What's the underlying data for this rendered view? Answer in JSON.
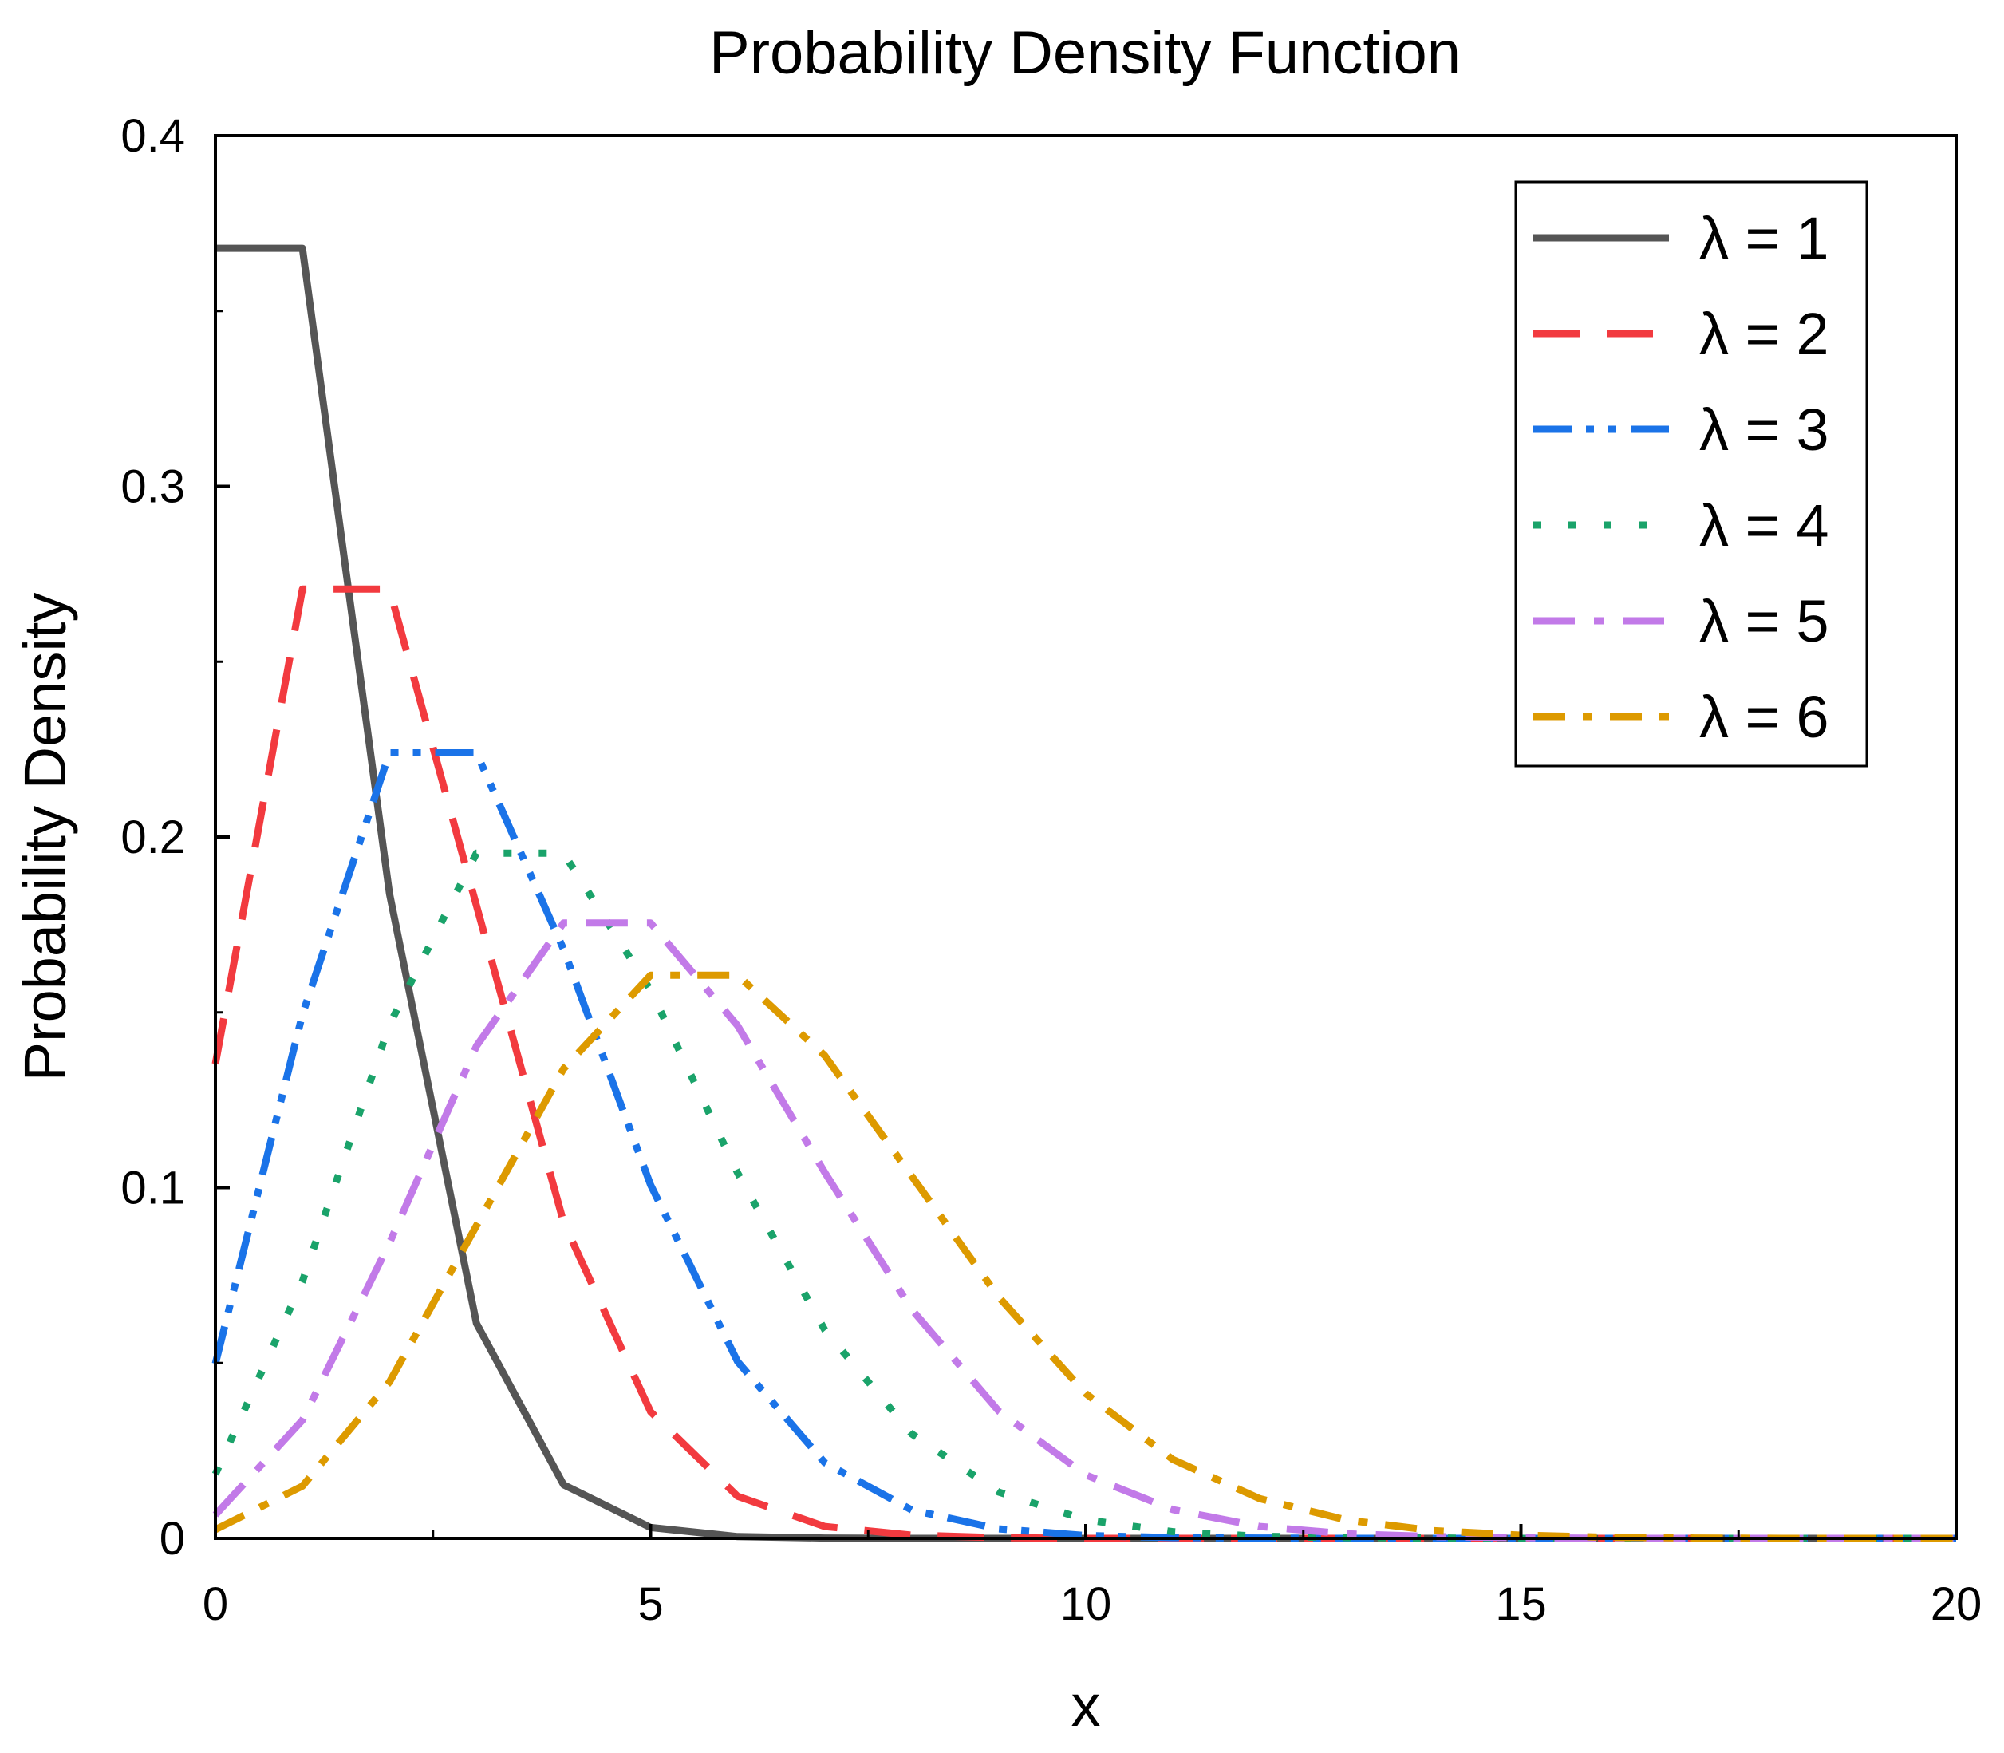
{
  "chart_data": {
    "type": "line",
    "title": "Probability Density Function",
    "xlabel": "x",
    "ylabel": "Probability Density",
    "xlim": [
      0,
      20
    ],
    "ylim": [
      0,
      0.4
    ],
    "xticks": [
      "0",
      "5",
      "10",
      "15",
      "20"
    ],
    "yticks": [
      "0",
      "0.1",
      "0.2",
      "0.3",
      "0.4"
    ],
    "grid": false,
    "legend_position": "top-right",
    "x": [
      0,
      1,
      2,
      3,
      4,
      5,
      6,
      7,
      8,
      9,
      10,
      11,
      12,
      13,
      14,
      15,
      16,
      17,
      18,
      19,
      20
    ],
    "series": [
      {
        "name": "λ = 1",
        "color": "#555555",
        "dash": "solid",
        "values": [
          0.3679,
          0.3679,
          0.1839,
          0.0613,
          0.0153,
          0.0031,
          0.0005,
          0.0001,
          0.0,
          0.0,
          0.0,
          0.0,
          0.0,
          0.0,
          0.0,
          0.0,
          0.0,
          0.0,
          0.0,
          0.0,
          0.0
        ]
      },
      {
        "name": "λ = 2",
        "color": "#f23a3f",
        "dash": "dash",
        "values": [
          0.1353,
          0.2707,
          0.2707,
          0.1804,
          0.0902,
          0.0361,
          0.012,
          0.0034,
          0.0009,
          0.0002,
          0.0,
          0.0,
          0.0,
          0.0,
          0.0,
          0.0,
          0.0,
          0.0,
          0.0,
          0.0,
          0.0
        ]
      },
      {
        "name": "λ = 3",
        "color": "#1a73e8",
        "dash": "dashdotdot",
        "values": [
          0.0498,
          0.1494,
          0.224,
          0.224,
          0.168,
          0.1008,
          0.0504,
          0.0216,
          0.0081,
          0.0027,
          0.0008,
          0.0002,
          0.0001,
          0.0,
          0.0,
          0.0,
          0.0,
          0.0,
          0.0,
          0.0,
          0.0
        ]
      },
      {
        "name": "λ = 4",
        "color": "#1aa36a",
        "dash": "dot",
        "values": [
          0.0183,
          0.0733,
          0.1465,
          0.1954,
          0.1954,
          0.1563,
          0.1042,
          0.0595,
          0.0298,
          0.0132,
          0.0053,
          0.0019,
          0.0006,
          0.0002,
          0.0001,
          0.0,
          0.0,
          0.0,
          0.0,
          0.0,
          0.0
        ]
      },
      {
        "name": "λ = 5",
        "color": "#c27ae8",
        "dash": "dashdot",
        "values": [
          0.0067,
          0.0337,
          0.0842,
          0.1404,
          0.1755,
          0.1755,
          0.1462,
          0.1044,
          0.0653,
          0.0363,
          0.0181,
          0.0082,
          0.0034,
          0.0013,
          0.0005,
          0.0002,
          0.0,
          0.0,
          0.0,
          0.0,
          0.0
        ]
      },
      {
        "name": "λ = 6",
        "color": "#dd9a00",
        "dash": "shortdashdot",
        "values": [
          0.0025,
          0.0149,
          0.0446,
          0.0892,
          0.1339,
          0.1606,
          0.1606,
          0.1377,
          0.1033,
          0.0688,
          0.0413,
          0.0225,
          0.0113,
          0.0052,
          0.0022,
          0.0009,
          0.0003,
          0.0001,
          0.0,
          0.0,
          0.0
        ]
      }
    ]
  }
}
